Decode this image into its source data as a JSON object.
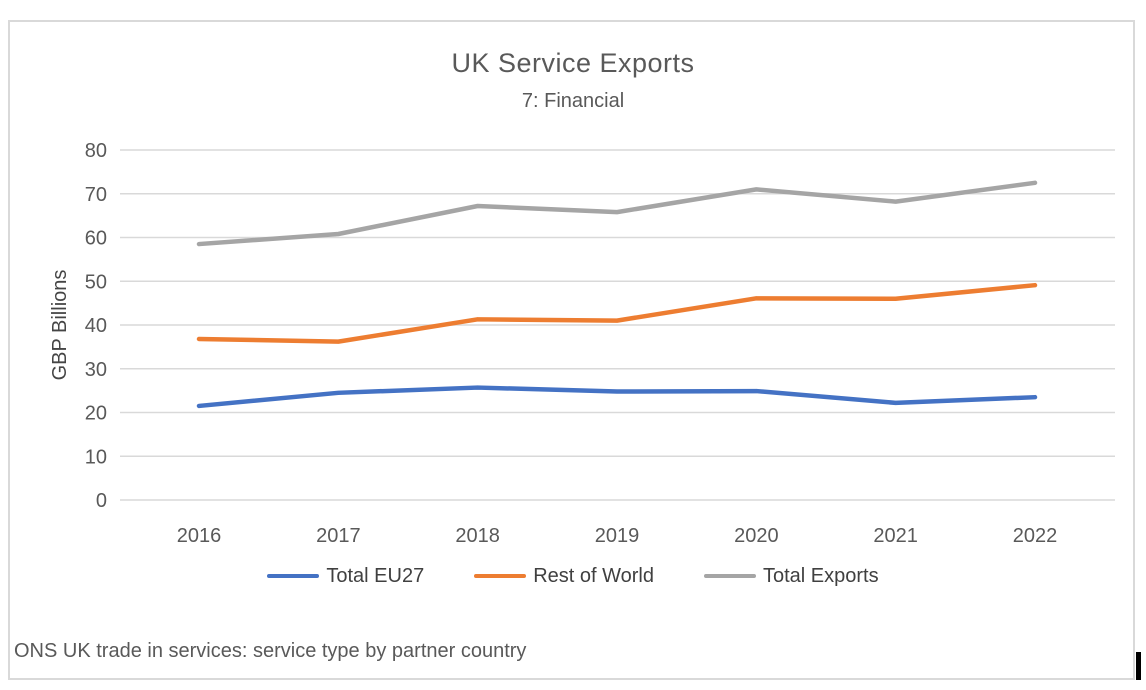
{
  "chart": {
    "source_note": "ONS UK trade in services: service type by partner country"
  },
  "chart_data": {
    "type": "line",
    "title": "UK Service Exports",
    "subtitle": "7: Financial",
    "xlabel": "",
    "ylabel": "GBP Billions",
    "x": [
      "2016",
      "2017",
      "2018",
      "2019",
      "2020",
      "2021",
      "2022"
    ],
    "series": [
      {
        "name": "Total EU27",
        "color": "#4472C4",
        "values": [
          21.5,
          24.5,
          25.7,
          24.8,
          24.9,
          22.2,
          23.5
        ]
      },
      {
        "name": "Rest of World",
        "color": "#ED7D31",
        "values": [
          36.8,
          36.2,
          41.3,
          41.0,
          46.1,
          46.0,
          49.1
        ]
      },
      {
        "name": "Total Exports",
        "color": "#A5A5A5",
        "values": [
          58.5,
          60.8,
          67.2,
          65.8,
          71.0,
          68.2,
          72.5
        ]
      }
    ],
    "ylim": [
      0,
      80
    ],
    "yticks": [
      0,
      10,
      20,
      30,
      40,
      50,
      60,
      70,
      80
    ],
    "grid": true,
    "grid_color": "#d9d9d9",
    "tick_color": "#595959",
    "legend_position": "bottom"
  }
}
